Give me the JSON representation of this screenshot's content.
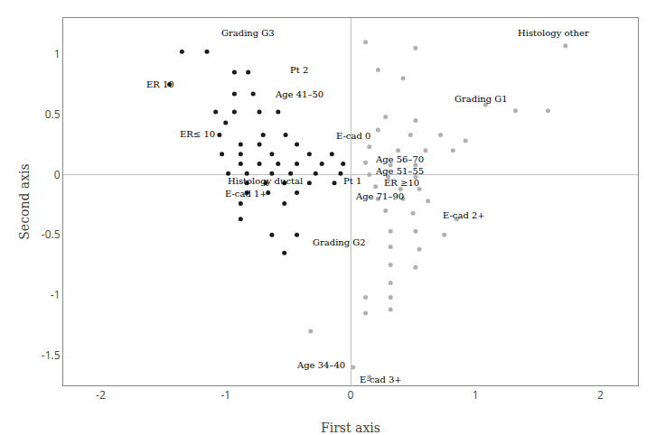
{
  "chart_data": {
    "type": "scatter",
    "xlabel": "First axis",
    "ylabel": "Second axis",
    "xlim": [
      -2.3,
      2.3
    ],
    "ylim": [
      -1.75,
      1.3
    ],
    "xticks": [
      -2,
      -1,
      0,
      1,
      2
    ],
    "yticks": [
      -1.5,
      -1,
      -0.5,
      0,
      0.5,
      1
    ],
    "grid": false,
    "series": [
      {
        "color": "#1a1a1a",
        "values": [
          [
            -1.35,
            1.02
          ],
          [
            -1.15,
            1.02
          ],
          [
            -1.45,
            0.75
          ],
          [
            -0.93,
            0.85
          ],
          [
            -0.82,
            0.85
          ],
          [
            -0.93,
            0.67
          ],
          [
            -0.78,
            0.67
          ],
          [
            -1.08,
            0.52
          ],
          [
            -0.93,
            0.52
          ],
          [
            -0.73,
            0.52
          ],
          [
            -0.58,
            0.52
          ],
          [
            -1.0,
            0.43
          ],
          [
            -1.05,
            0.33
          ],
          [
            -0.7,
            0.33
          ],
          [
            -0.52,
            0.33
          ],
          [
            -0.88,
            0.25
          ],
          [
            -0.73,
            0.25
          ],
          [
            -0.43,
            0.25
          ],
          [
            -1.03,
            0.17
          ],
          [
            -0.88,
            0.17
          ],
          [
            -0.63,
            0.17
          ],
          [
            -0.33,
            0.17
          ],
          [
            -0.15,
            0.17
          ],
          [
            -0.88,
            0.09
          ],
          [
            -0.73,
            0.09
          ],
          [
            -0.58,
            0.09
          ],
          [
            -0.43,
            0.09
          ],
          [
            -0.23,
            0.09
          ],
          [
            -0.06,
            0.09
          ],
          [
            -0.98,
            0.01
          ],
          [
            -0.83,
            0.01
          ],
          [
            -0.63,
            0.01
          ],
          [
            -0.48,
            0.01
          ],
          [
            -0.28,
            0.01
          ],
          [
            -0.08,
            0.01
          ],
          [
            -0.83,
            -0.07
          ],
          [
            -0.68,
            -0.07
          ],
          [
            -0.53,
            -0.07
          ],
          [
            -0.33,
            -0.07
          ],
          [
            -0.13,
            -0.07
          ],
          [
            -0.83,
            -0.15
          ],
          [
            -0.66,
            -0.15
          ],
          [
            -0.43,
            -0.15
          ],
          [
            -0.88,
            -0.24
          ],
          [
            -0.53,
            -0.24
          ],
          [
            -0.88,
            -0.37
          ],
          [
            -0.63,
            -0.5
          ],
          [
            -0.43,
            -0.5
          ],
          [
            -0.53,
            -0.65
          ]
        ]
      },
      {
        "color": "#b0b0b0",
        "values": [
          [
            0.12,
            1.1
          ],
          [
            0.52,
            1.05
          ],
          [
            0.22,
            0.87
          ],
          [
            0.42,
            0.8
          ],
          [
            1.72,
            1.07
          ],
          [
            1.08,
            0.58
          ],
          [
            1.32,
            0.53
          ],
          [
            1.58,
            0.53
          ],
          [
            0.28,
            0.48
          ],
          [
            0.52,
            0.45
          ],
          [
            0.22,
            0.37
          ],
          [
            0.48,
            0.33
          ],
          [
            0.72,
            0.33
          ],
          [
            0.92,
            0.28
          ],
          [
            0.15,
            0.23
          ],
          [
            0.38,
            0.2
          ],
          [
            0.6,
            0.2
          ],
          [
            0.82,
            0.2
          ],
          [
            0.12,
            0.1
          ],
          [
            0.32,
            0.08
          ],
          [
            0.52,
            0.08
          ],
          [
            0.15,
            0.0
          ],
          [
            0.3,
            -0.02
          ],
          [
            0.52,
            -0.02
          ],
          [
            0.2,
            -0.1
          ],
          [
            0.4,
            -0.12
          ],
          [
            0.55,
            -0.12
          ],
          [
            0.22,
            -0.2
          ],
          [
            0.42,
            -0.2
          ],
          [
            0.62,
            -0.22
          ],
          [
            0.28,
            -0.3
          ],
          [
            0.5,
            -0.32
          ],
          [
            0.85,
            -0.37
          ],
          [
            0.32,
            -0.47
          ],
          [
            0.52,
            -0.47
          ],
          [
            0.75,
            -0.5
          ],
          [
            0.32,
            -0.6
          ],
          [
            0.55,
            -0.62
          ],
          [
            0.32,
            -0.75
          ],
          [
            0.52,
            -0.77
          ],
          [
            0.32,
            -0.9
          ],
          [
            0.12,
            -1.02
          ],
          [
            0.32,
            -1.02
          ],
          [
            0.12,
            -1.15
          ],
          [
            0.32,
            -1.12
          ],
          [
            -0.32,
            -1.3
          ],
          [
            0.02,
            -1.6
          ],
          [
            0.15,
            -1.68
          ]
        ]
      }
    ],
    "annotations": [
      {
        "text": "Grading G3",
        "x": -1.05,
        "y": 1.18
      },
      {
        "text": "ER 10",
        "x": -1.65,
        "y": 0.75
      },
      {
        "text": "Pt 2",
        "x": -0.5,
        "y": 0.87
      },
      {
        "text": "Age 41–50",
        "x": -0.62,
        "y": 0.67
      },
      {
        "text": "ER≤ 10",
        "x": -1.38,
        "y": 0.34
      },
      {
        "text": "E-cad 0",
        "x": -0.13,
        "y": 0.32
      },
      {
        "text": "Age 56–70",
        "x": 0.18,
        "y": 0.13
      },
      {
        "text": "Histology ductal",
        "x": -1.0,
        "y": -0.05
      },
      {
        "text": "E-cad 1+",
        "x": -1.02,
        "y": -0.16
      },
      {
        "text": "Pt 1",
        "x": -0.07,
        "y": -0.05
      },
      {
        "text": "Age 51–55",
        "x": 0.18,
        "y": 0.03
      },
      {
        "text": "ER ≥10",
        "x": 0.25,
        "y": -0.07
      },
      {
        "text": "Age 71–90",
        "x": 0.02,
        "y": -0.18
      },
      {
        "text": "E-cad 2+",
        "x": 0.72,
        "y": -0.34
      },
      {
        "text": "Grading G2",
        "x": -0.32,
        "y": -0.56
      },
      {
        "text": "Age 34–40",
        "x": -0.45,
        "y": -1.58
      },
      {
        "text": "E-cad 3+",
        "x": 0.06,
        "y": -1.7
      },
      {
        "text": "Histology other",
        "x": 1.32,
        "y": 1.18
      },
      {
        "text": "Grading G1",
        "x": 0.82,
        "y": 0.63
      }
    ]
  }
}
